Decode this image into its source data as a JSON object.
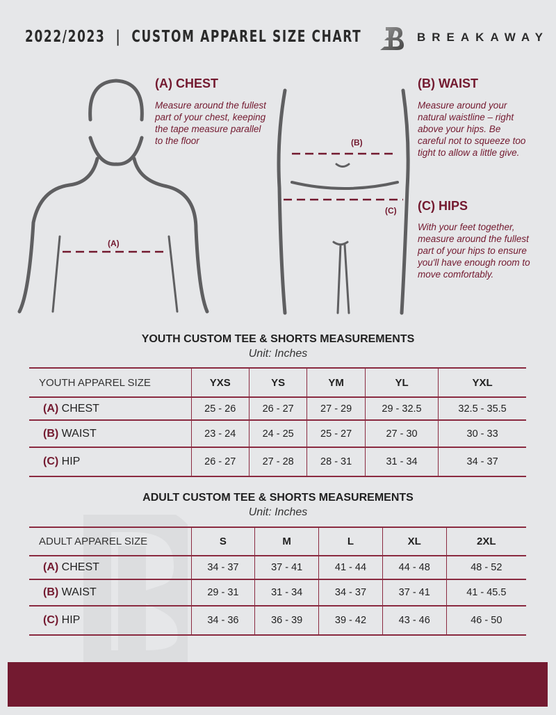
{
  "header": {
    "title": "2022/2023  |  CUSTOM APPAREL SIZE CHART",
    "brand": "BREAKAWAY"
  },
  "chest": {
    "heading": "(A) CHEST",
    "text": "Measure around the fullest part of your chest, keeping the tape measure parallel to the floor",
    "marker": "(A)"
  },
  "waist": {
    "heading": "(B) WAIST",
    "text": "Measure around your natural waistline – right above your hips. Be careful not to squeeze too tight to allow a little give.",
    "marker": "(B)"
  },
  "hips": {
    "heading": "(C) HIPS",
    "text": "With your feet together, measure around the fullest part of your hips to ensure you'll have enough room to move comfortably.",
    "marker": "(C)"
  },
  "youth": {
    "title": "YOUTH CUSTOM TEE & SHORTS MEASUREMENTS",
    "unit": "Unit: Inches",
    "size_label": "YOUTH APPAREL SIZE",
    "sizes": [
      "YXS",
      "YS",
      "YM",
      "YL",
      "YXL"
    ],
    "rows": [
      {
        "code": "(A)",
        "name": "CHEST",
        "values": [
          "25 - 26",
          "26 - 27",
          "27 - 29",
          "29 - 32.5",
          "32.5 - 35.5"
        ]
      },
      {
        "code": "(B)",
        "name": "WAIST",
        "values": [
          "23 - 24",
          "24 - 25",
          "25 - 27",
          "27 - 30",
          "30 - 33"
        ]
      },
      {
        "code": "(C)",
        "name": "HIP",
        "values": [
          "26 - 27",
          "27 - 28",
          "28 - 31",
          "31 - 34",
          "34 - 37"
        ]
      }
    ]
  },
  "adult": {
    "title": "ADULT CUSTOM TEE & SHORTS MEASUREMENTS",
    "unit": "Unit: Inches",
    "size_label": "ADULT APPAREL SIZE",
    "sizes": [
      "S",
      "M",
      "L",
      "XL",
      "2XL"
    ],
    "rows": [
      {
        "code": "(A)",
        "name": "CHEST",
        "values": [
          "34 - 37",
          "37 - 41",
          "41 - 44",
          "44 - 48",
          "48 - 52"
        ]
      },
      {
        "code": "(B)",
        "name": "WAIST",
        "values": [
          "29 - 31",
          "31 - 34",
          "34 - 37",
          "37 - 41",
          "41 - 45.5"
        ]
      },
      {
        "code": "(C)",
        "name": "HIP",
        "values": [
          "34 - 36",
          "36 - 39",
          "39 - 42",
          "43 - 46",
          "46 - 50"
        ]
      }
    ]
  },
  "colors": {
    "accent": "#731a30",
    "background": "#e6e7e9",
    "figure": "#5f5f61"
  }
}
